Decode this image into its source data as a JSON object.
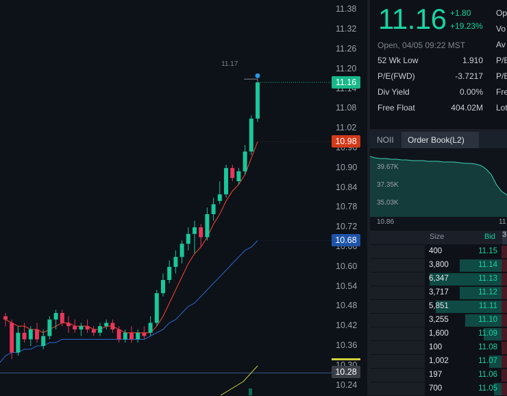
{
  "chart": {
    "y_axis": {
      "min": 10.21,
      "max": 11.41,
      "ticks": [
        "11.38",
        "11.32",
        "11.26",
        "11.20",
        "11.14",
        "11.08",
        "11.02",
        "10.96",
        "10.90",
        "10.84",
        "10.78",
        "10.72",
        "10.66",
        "10.60",
        "10.54",
        "10.48",
        "10.42",
        "10.36",
        "10.30",
        "10.24"
      ]
    },
    "high_marker": "11.17",
    "tags": {
      "last": {
        "value": "11.16",
        "price": 11.16,
        "color": "#18b88a"
      },
      "short_ma": {
        "value": "10.98",
        "price": 10.98,
        "color": "#d23a1a"
      },
      "long_ma": {
        "value": "10.68",
        "price": 10.68,
        "color": "#1e54a8"
      },
      "lower": {
        "value": "10.28",
        "price": 10.28,
        "color": "#3a3f48"
      }
    },
    "colors": {
      "up": "#19c79a",
      "down": "#e8375a",
      "ma_short": "#e8432e",
      "ma_long": "#2a64c4",
      "volume_ma": "#c8d23a"
    },
    "candles": [
      {
        "o": 10.45,
        "h": 10.46,
        "l": 10.42,
        "c": 10.44
      },
      {
        "o": 10.43,
        "h": 10.44,
        "l": 10.32,
        "c": 10.34
      },
      {
        "o": 10.34,
        "h": 10.42,
        "l": 10.33,
        "c": 10.4
      },
      {
        "o": 10.4,
        "h": 10.43,
        "l": 10.37,
        "c": 10.38
      },
      {
        "o": 10.38,
        "h": 10.42,
        "l": 10.36,
        "c": 10.41
      },
      {
        "o": 10.41,
        "h": 10.43,
        "l": 10.37,
        "c": 10.38
      },
      {
        "o": 10.36,
        "h": 10.41,
        "l": 10.35,
        "c": 10.39
      },
      {
        "o": 10.39,
        "h": 10.45,
        "l": 10.38,
        "c": 10.44
      },
      {
        "o": 10.44,
        "h": 10.47,
        "l": 10.41,
        "c": 10.46
      },
      {
        "o": 10.46,
        "h": 10.47,
        "l": 10.42,
        "c": 10.43
      },
      {
        "o": 10.43,
        "h": 10.45,
        "l": 10.4,
        "c": 10.42
      },
      {
        "o": 10.42,
        "h": 10.44,
        "l": 10.4,
        "c": 10.41
      },
      {
        "o": 10.41,
        "h": 10.43,
        "l": 10.39,
        "c": 10.42
      },
      {
        "o": 10.42,
        "h": 10.44,
        "l": 10.4,
        "c": 10.41
      },
      {
        "o": 10.41,
        "h": 10.42,
        "l": 10.39,
        "c": 10.4
      },
      {
        "o": 10.4,
        "h": 10.43,
        "l": 10.39,
        "c": 10.42
      },
      {
        "o": 10.42,
        "h": 10.44,
        "l": 10.41,
        "c": 10.43
      },
      {
        "o": 10.43,
        "h": 10.44,
        "l": 10.4,
        "c": 10.41
      },
      {
        "o": 10.41,
        "h": 10.42,
        "l": 10.37,
        "c": 10.38
      },
      {
        "o": 10.38,
        "h": 10.41,
        "l": 10.37,
        "c": 10.4
      },
      {
        "o": 10.4,
        "h": 10.42,
        "l": 10.37,
        "c": 10.38
      },
      {
        "o": 10.38,
        "h": 10.41,
        "l": 10.37,
        "c": 10.4
      },
      {
        "o": 10.4,
        "h": 10.42,
        "l": 10.38,
        "c": 10.39
      },
      {
        "o": 10.4,
        "h": 10.45,
        "l": 10.39,
        "c": 10.43
      },
      {
        "o": 10.43,
        "h": 10.53,
        "l": 10.42,
        "c": 10.52
      },
      {
        "o": 10.52,
        "h": 10.58,
        "l": 10.51,
        "c": 10.56
      },
      {
        "o": 10.56,
        "h": 10.62,
        "l": 10.55,
        "c": 10.6
      },
      {
        "o": 10.6,
        "h": 10.65,
        "l": 10.58,
        "c": 10.63
      },
      {
        "o": 10.63,
        "h": 10.68,
        "l": 10.61,
        "c": 10.67
      },
      {
        "o": 10.67,
        "h": 10.72,
        "l": 10.65,
        "c": 10.7
      },
      {
        "o": 10.7,
        "h": 10.74,
        "l": 10.64,
        "c": 10.72
      },
      {
        "o": 10.72,
        "h": 10.73,
        "l": 10.66,
        "c": 10.69
      },
      {
        "o": 10.69,
        "h": 10.78,
        "l": 10.68,
        "c": 10.76
      },
      {
        "o": 10.76,
        "h": 10.81,
        "l": 10.74,
        "c": 10.79
      },
      {
        "o": 10.8,
        "h": 10.86,
        "l": 10.79,
        "c": 10.82
      },
      {
        "o": 10.82,
        "h": 10.91,
        "l": 10.81,
        "c": 10.9
      },
      {
        "o": 10.9,
        "h": 10.91,
        "l": 10.86,
        "c": 10.87
      },
      {
        "o": 10.86,
        "h": 10.9,
        "l": 10.85,
        "c": 10.89
      },
      {
        "o": 10.89,
        "h": 10.97,
        "l": 10.88,
        "c": 10.95
      },
      {
        "o": 10.95,
        "h": 11.06,
        "l": 10.94,
        "c": 11.05
      },
      {
        "o": 11.05,
        "h": 11.17,
        "l": 11.04,
        "c": 11.16
      }
    ],
    "ma_short": [
      10.44,
      10.43,
      10.42,
      10.42,
      10.41,
      10.41,
      10.4,
      10.41,
      10.42,
      10.43,
      10.43,
      10.42,
      10.42,
      10.42,
      10.41,
      10.41,
      10.42,
      10.42,
      10.41,
      10.4,
      10.4,
      10.4,
      10.4,
      10.4,
      10.42,
      10.45,
      10.49,
      10.53,
      10.57,
      10.61,
      10.64,
      10.66,
      10.69,
      10.73,
      10.76,
      10.8,
      10.83,
      10.85,
      10.88,
      10.93,
      10.98
    ],
    "ma_long": [
      10.33,
      10.34,
      10.34,
      10.35,
      10.35,
      10.36,
      10.36,
      10.37,
      10.37,
      10.38,
      10.38,
      10.38,
      10.38,
      10.38,
      10.38,
      10.38,
      10.38,
      10.38,
      10.38,
      10.38,
      10.38,
      10.38,
      10.38,
      10.39,
      10.4,
      10.41,
      10.43,
      10.44,
      10.46,
      10.48,
      10.49,
      10.51,
      10.53,
      10.55,
      10.57,
      10.59,
      10.61,
      10.63,
      10.65,
      10.66,
      10.68
    ]
  },
  "quote": {
    "last": "11.16",
    "change": "+1.80",
    "change_pct": "+19.23%",
    "status": "Open, 04/05 09:22 MST",
    "cut_labels": [
      "Op",
      "Vo",
      "Av",
      "P/E",
      "P/E",
      "Fre",
      "Lot"
    ],
    "stats": [
      {
        "label": "52 Wk Low",
        "value": "1.910"
      },
      {
        "label": "P/E(FWD)",
        "value": "-3.7217"
      },
      {
        "label": "Div Yield",
        "value": "0.00%"
      },
      {
        "label": "Free Float",
        "value": "404.02M"
      }
    ]
  },
  "tabs": {
    "noii": "NOII",
    "order_book": "Order Book(L2)"
  },
  "depth": {
    "labels": [
      "39.67K",
      "37.35K",
      "35.03K"
    ],
    "x_label": "10.86",
    "x_label_right": "11",
    "curve": [
      0.96,
      0.94,
      0.93,
      0.93,
      0.92,
      0.92,
      0.91,
      0.91,
      0.9,
      0.9,
      0.9,
      0.89,
      0.89,
      0.89,
      0.88,
      0.88,
      0.88,
      0.87,
      0.86,
      0.86,
      0.85,
      0.83,
      0.78,
      0.7,
      0.55,
      0.45,
      0.4
    ]
  },
  "book": {
    "header": {
      "size": "Size",
      "bid": "Bid",
      "ask": "3"
    },
    "rows": [
      {
        "size": "400",
        "bid": "11.15",
        "fill": 0.0
      },
      {
        "size": "3,800",
        "bid": "11.14",
        "fill": 0.55
      },
      {
        "size": "6,347",
        "bid": "11.13",
        "fill": 0.95
      },
      {
        "size": "3,717",
        "bid": "11.12",
        "fill": 0.55
      },
      {
        "size": "5,851",
        "bid": "11.11",
        "fill": 0.87
      },
      {
        "size": "3,255",
        "bid": "11.10",
        "fill": 0.48
      },
      {
        "size": "1,600",
        "bid": "11.09",
        "fill": 0.24
      },
      {
        "size": "100",
        "bid": "11.08",
        "fill": 0.0
      },
      {
        "size": "1,002",
        "bid": "11.07",
        "fill": 0.16
      },
      {
        "size": "197",
        "bid": "11.06",
        "fill": 0.0
      },
      {
        "size": "700",
        "bid": "11.05",
        "fill": 0.1
      }
    ]
  }
}
